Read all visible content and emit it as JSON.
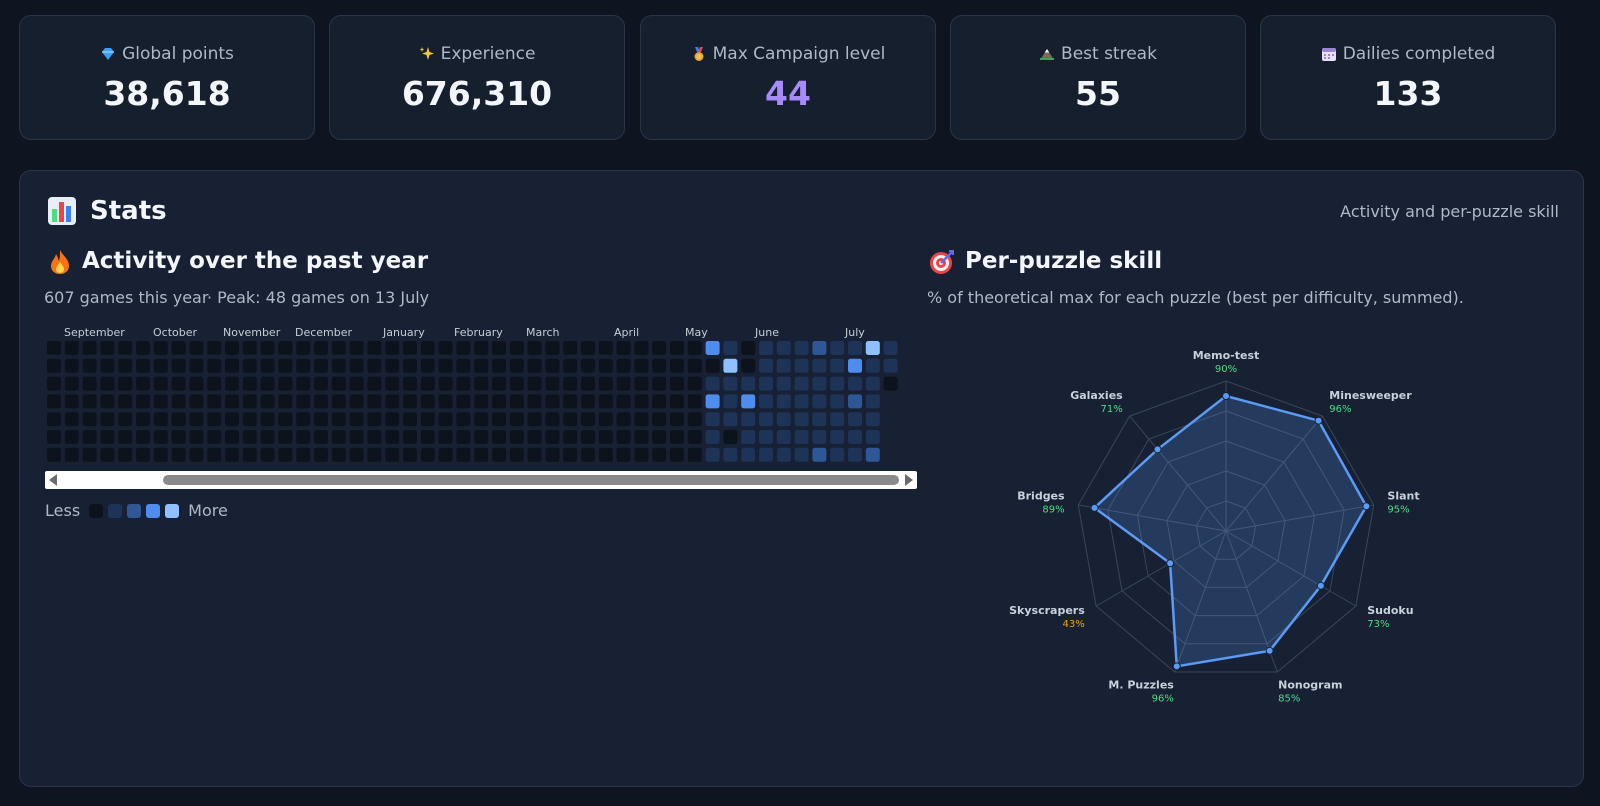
{
  "stats": [
    {
      "label": "Global points",
      "value": "38,618",
      "icon": "gem-icon",
      "value_color": "#f3f6fa"
    },
    {
      "label": "Experience",
      "value": "676,310",
      "icon": "sparkles-icon",
      "value_color": "#f3f6fa"
    },
    {
      "label": "Max Campaign level",
      "value": "44",
      "icon": "medal-icon",
      "value_color": "#a78bfa"
    },
    {
      "label": "Best streak",
      "value": "55",
      "icon": "mountain-icon",
      "value_color": "#f3f6fa"
    },
    {
      "label": "Dailies completed",
      "value": "133",
      "icon": "calendar-icon",
      "value_color": "#f3f6fa"
    }
  ],
  "panel": {
    "title": "Stats",
    "title_icon": "bar-chart-icon",
    "subtitle": "Activity and per-puzzle skill"
  },
  "activity": {
    "title": "Activity over the past year",
    "icon": "fire-icon",
    "summary": "607 games this year",
    "peak": "· Peak: 48 games on 13 July",
    "months": [
      "September",
      "October",
      "November",
      "December",
      "January",
      "February",
      "March",
      "April",
      "May",
      "June",
      "July"
    ],
    "legend_less": "Less",
    "legend_more": "More",
    "levels": [
      "#0d131d",
      "#1e3358",
      "#2e5796",
      "#4e8ded",
      "#8fc0ff"
    ],
    "active_weeks": [
      [
        3,
        0,
        1,
        3,
        1,
        1,
        1
      ],
      [
        1,
        4,
        1,
        1,
        1,
        0,
        1
      ],
      [
        0,
        0,
        1,
        3,
        1,
        1,
        1
      ],
      [
        1,
        1,
        1,
        1,
        1,
        1,
        1
      ],
      [
        1,
        1,
        1,
        1,
        1,
        1,
        1
      ],
      [
        1,
        1,
        1,
        1,
        1,
        1,
        1
      ],
      [
        2,
        1,
        1,
        1,
        1,
        1,
        2
      ],
      [
        1,
        1,
        1,
        1,
        1,
        1,
        1
      ],
      [
        1,
        3,
        1,
        2,
        1,
        1,
        1
      ],
      [
        4,
        1,
        1,
        1,
        1,
        1,
        2
      ],
      [
        1,
        1,
        0,
        null,
        null,
        null,
        null
      ]
    ]
  },
  "skill": {
    "title": "Per-puzzle skill",
    "icon": "target-icon",
    "subtitle": "% of theoretical max for each puzzle (best per difficulty, summed).",
    "accent": "#5b9bf5",
    "pct_color_high": "#4ade80",
    "pct_color_low": "#f59e0b"
  },
  "chart_data": {
    "type": "radar",
    "categories": [
      "Memo-test",
      "Minesweeper",
      "Slant",
      "Sudoku",
      "Nonogram",
      "M. Puzzles",
      "Skyscrapers",
      "Bridges",
      "Galaxies"
    ],
    "values": [
      90,
      96,
      95,
      73,
      85,
      96,
      43,
      89,
      71
    ],
    "labels": [
      "90%",
      "96%",
      "95%",
      "73%",
      "85%",
      "96%",
      "43%",
      "89%",
      "71%"
    ],
    "ylim": [
      0,
      100
    ],
    "grid": true
  }
}
